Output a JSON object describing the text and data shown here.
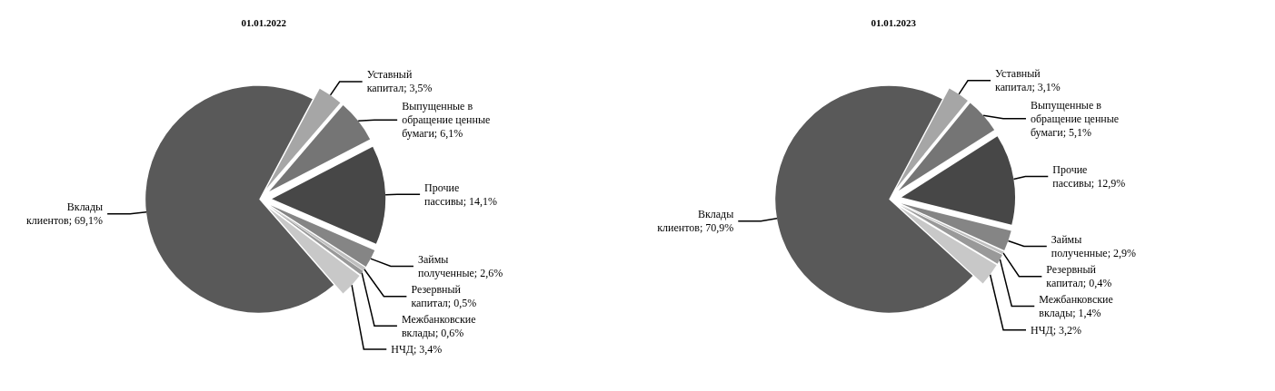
{
  "chart_data": [
    {
      "type": "pie",
      "title": "01.01.2022",
      "categories": [
        "Уставный капитал",
        "Выпущенные в обращение ценные бумаги",
        "Прочие пассивы",
        "Займы полученные",
        "Резервный капитал",
        "Межбанковские вклады",
        "НЧД",
        "Вклады клиентов"
      ],
      "values": [
        3.5,
        6.1,
        14.1,
        2.6,
        0.5,
        0.6,
        3.4,
        69.1
      ],
      "value_labels": [
        "3,5%",
        "6,1%",
        "14,1%",
        "2,6%",
        "0,5%",
        "0,6%",
        "3,4%",
        "69,1%"
      ],
      "colors": [
        "#a6a6a6",
        "#757575",
        "#474747",
        "#858585",
        "#bfbfbf",
        "#999999",
        "#c8c8c8",
        "#595959"
      ],
      "legend": false
    },
    {
      "type": "pie",
      "title": "01.01.2023",
      "categories": [
        "Уставный капитал",
        "Выпущенные в обращение ценные бумаги",
        "Прочие пассивы",
        "Займы полученные",
        "Резервный капитал",
        "Межбанковские вклады",
        "НЧД",
        "Вклады клиентов"
      ],
      "values": [
        3.1,
        5.1,
        12.9,
        2.9,
        0.4,
        1.4,
        3.2,
        70.9
      ],
      "value_labels": [
        "3,1%",
        "5,1%",
        "12,9%",
        "2,9%",
        "0,4%",
        "1,4%",
        "3,2%",
        "70,9%"
      ],
      "colors": [
        "#a6a6a6",
        "#757575",
        "#474747",
        "#858585",
        "#bfbfbf",
        "#999999",
        "#c8c8c8",
        "#595959"
      ],
      "legend": false
    }
  ]
}
